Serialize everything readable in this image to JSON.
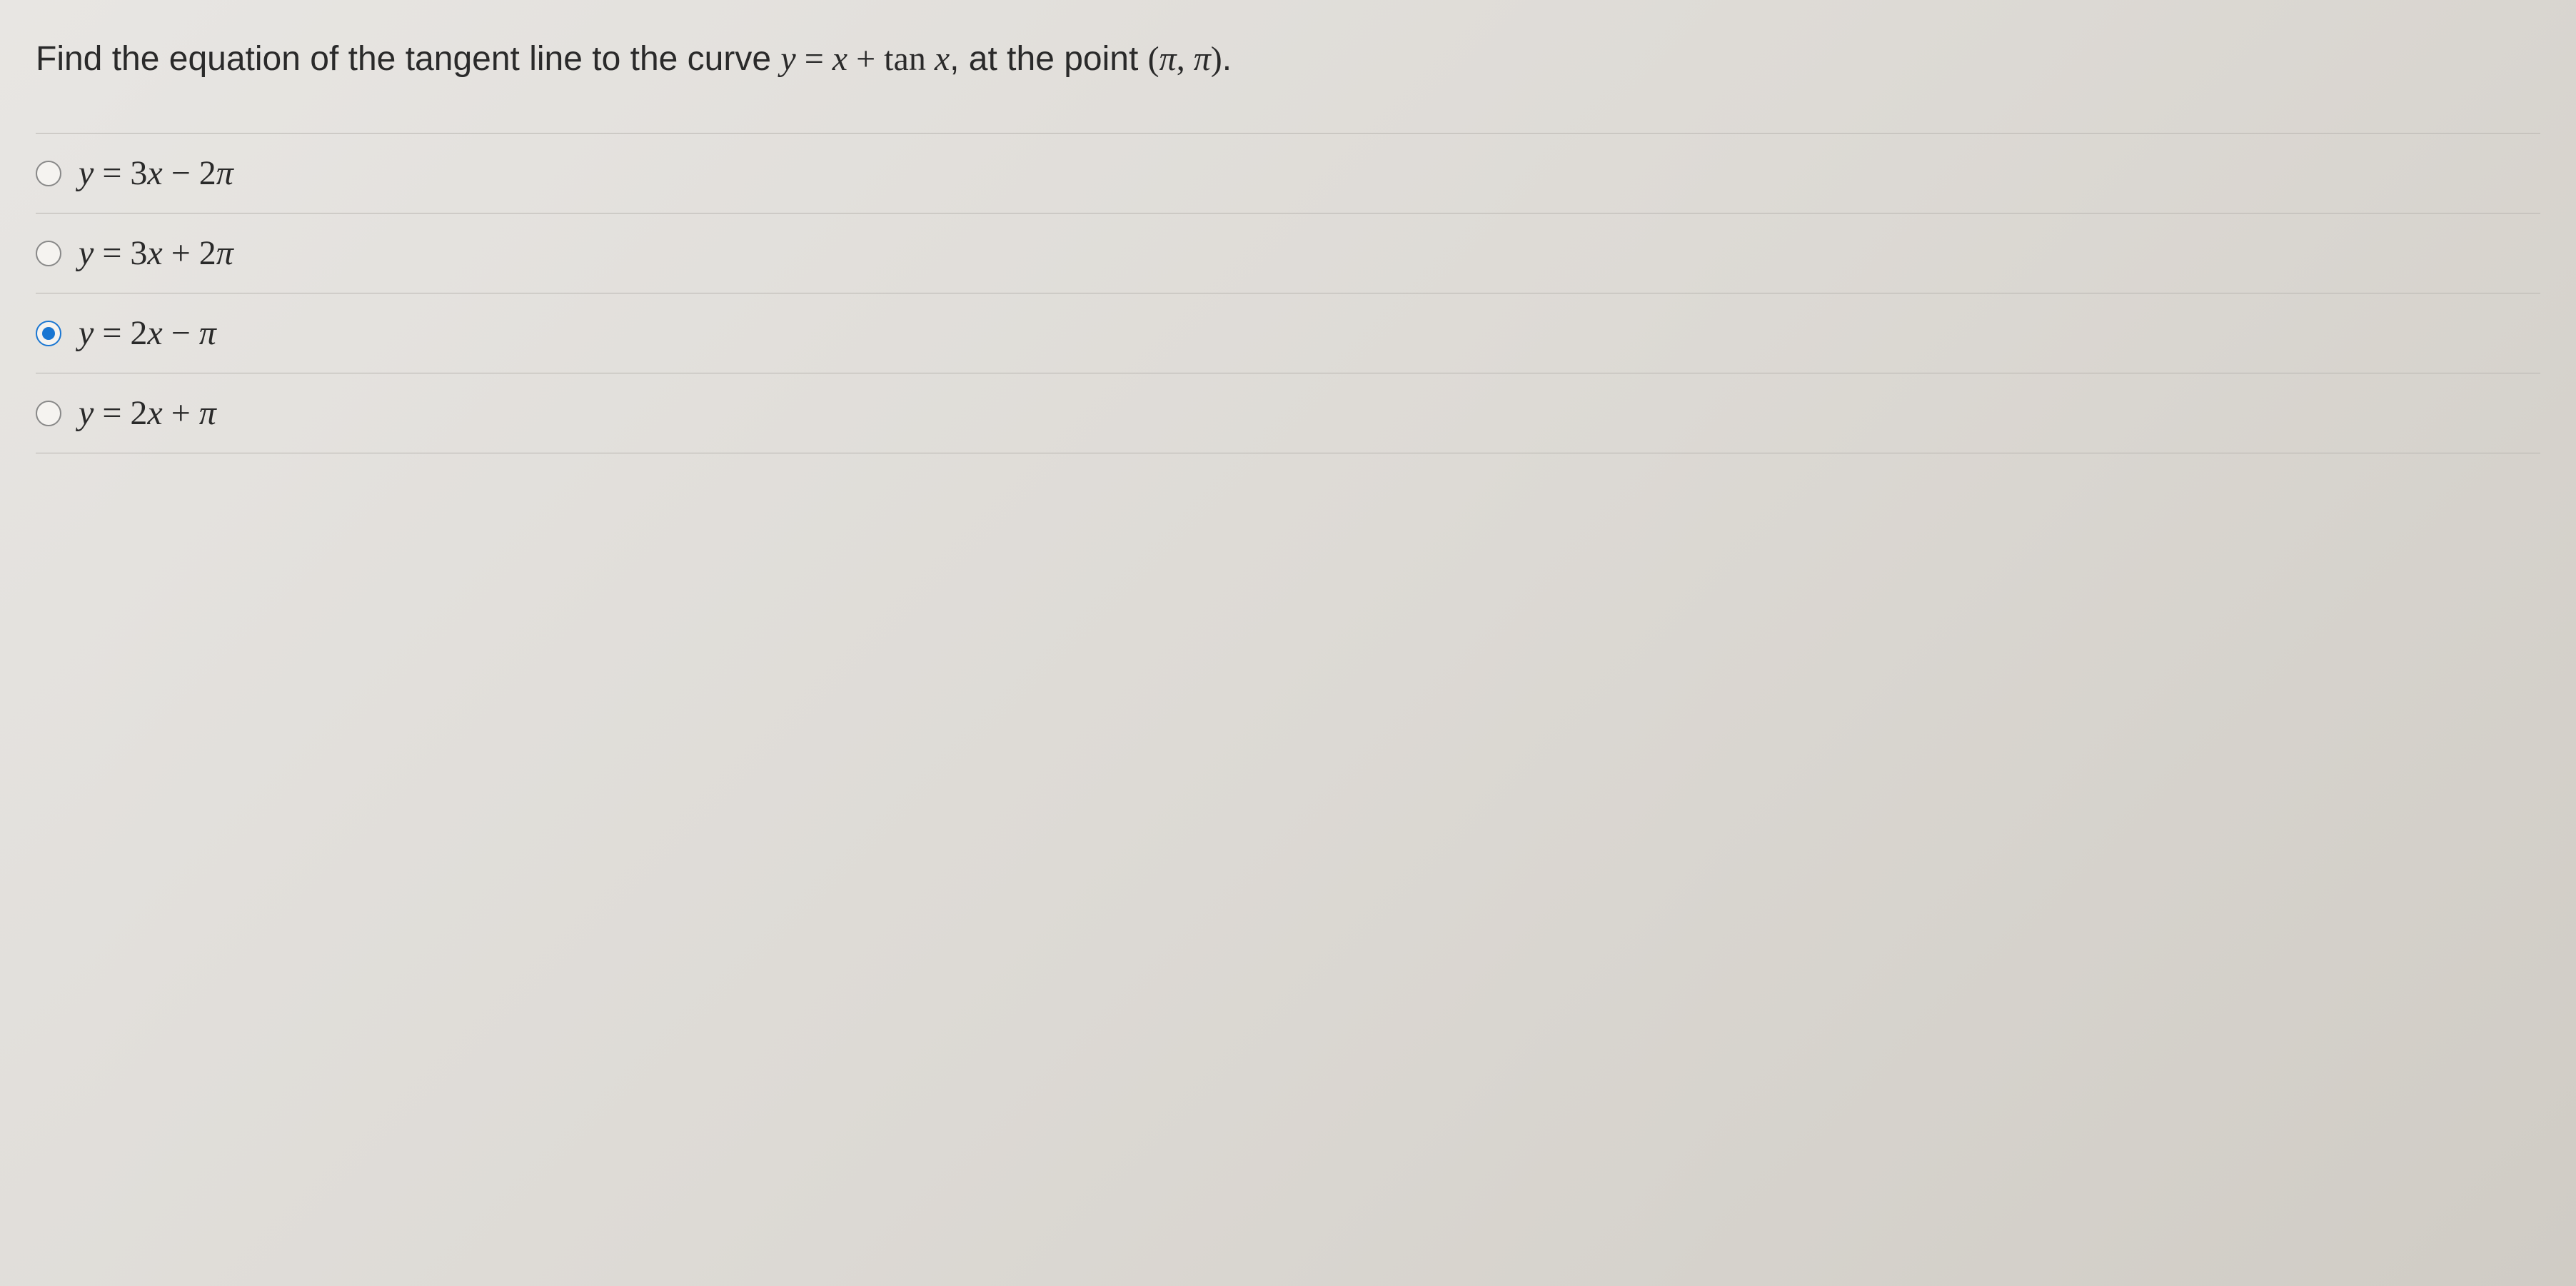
{
  "question": {
    "prefix": "Find the equation of the tangent line to the curve ",
    "equation": "y = x + tan x",
    "middle": ", at the point ",
    "point": "(π, π)",
    "suffix": "."
  },
  "options": [
    {
      "label": "y = 3x − 2π",
      "selected": false
    },
    {
      "label": "y = 3x + 2π",
      "selected": false
    },
    {
      "label": "y = 2x − π",
      "selected": true
    },
    {
      "label": "y = 2x + π",
      "selected": false
    }
  ],
  "style": {
    "background_gradient_start": "#e8e6e3",
    "background_gradient_end": "#d0ccc5",
    "text_color": "#2a2a2a",
    "divider_color": "#b8b5b0",
    "radio_border_color": "#888888",
    "radio_selected_color": "#1976d2",
    "question_fontsize": 48,
    "option_fontsize": 48
  }
}
